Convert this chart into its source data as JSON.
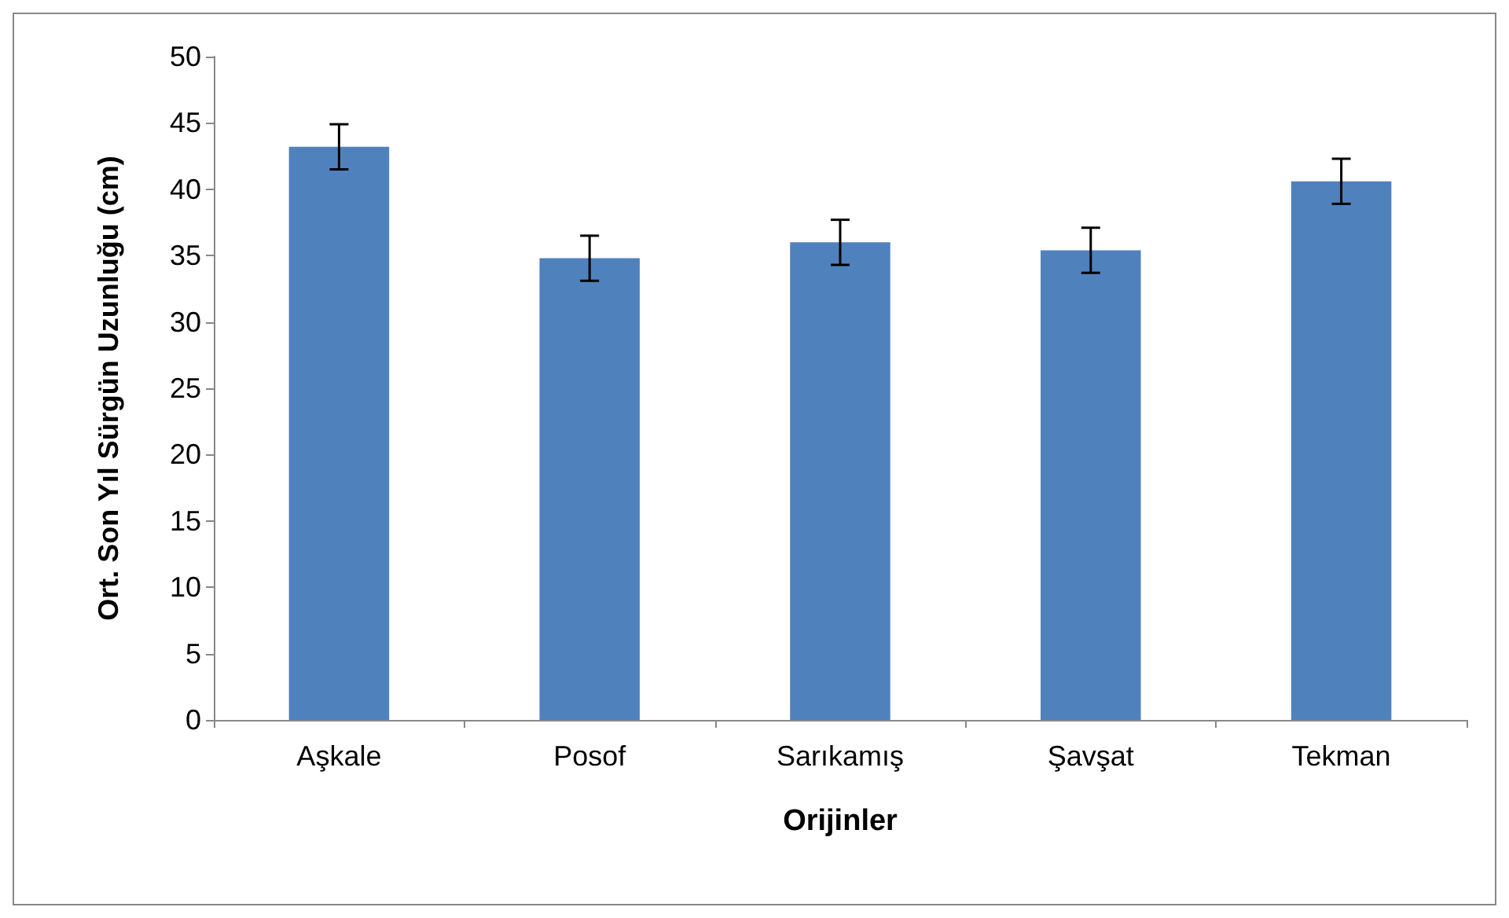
{
  "chart_data": {
    "type": "bar",
    "xlabel": "Orijinler",
    "ylabel": "Ort. Son Yıl Sürgün Uzunluğu (cm)",
    "categories": [
      "Aşkale",
      "Posof",
      "Sarıkamış",
      "Şavşat",
      "Tekman"
    ],
    "values": [
      43.2,
      34.8,
      36.0,
      35.4,
      40.6
    ],
    "errors": [
      1.7,
      1.7,
      1.7,
      1.7,
      1.7
    ],
    "color": "#4f81bd",
    "ylim": [
      0,
      50
    ],
    "yticks": [
      0,
      5,
      10,
      15,
      20,
      25,
      30,
      35,
      40,
      45,
      50
    ],
    "grid": false
  }
}
